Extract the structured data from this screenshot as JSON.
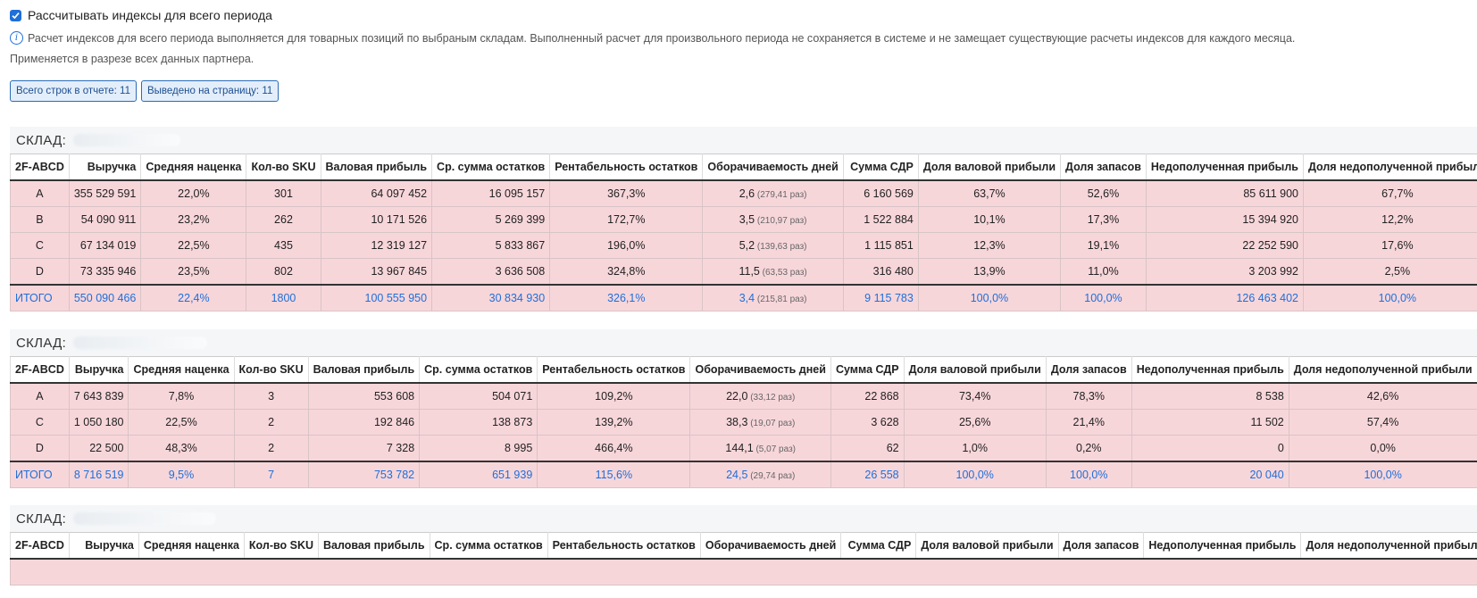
{
  "settings": {
    "checkbox_label": "Рассчитывать индексы для всего периода",
    "checkbox_checked": true,
    "info_text": "Расчет индексов для всего периода выполняется для товарных позиций по выбраным складам. Выполненный расчет для произвольного периода не сохраняется в системе и не замещает существующие расчеты индексов для каждого месяца.",
    "note_text": "Применяется в разрезе всех данных партнера."
  },
  "badges": {
    "total_rows": "Всего строк в отчете: 11",
    "shown_rows": "Выведено на страницу: 11"
  },
  "columns": [
    "2F-ABCD",
    "Выручка",
    "Средняя наценка",
    "Кол-во SKU",
    "Валовая прибыль",
    "Ср. сумма остатков",
    "Рентабельность остатков",
    "Оборачиваемость дней",
    "Сумма СДР",
    "Доля валовой прибыли",
    "Доля запасов",
    "Недополученная прибыль",
    "Доля недополученной прибыли"
  ],
  "warehouses": [
    {
      "label": "СКЛАД:",
      "rows": [
        [
          "A",
          "355 529 591",
          "22,0%",
          "301",
          "64 097 452",
          "16 095 157",
          "367,3%",
          "2,6",
          "(279,41 раз)",
          "6 160 569",
          "63,7%",
          "52,6%",
          "85 611 900",
          "67,7%"
        ],
        [
          "B",
          "54 090 911",
          "23,2%",
          "262",
          "10 171 526",
          "5 269 399",
          "172,7%",
          "3,5",
          "(210,97 раз)",
          "1 522 884",
          "10,1%",
          "17,3%",
          "15 394 920",
          "12,2%"
        ],
        [
          "C",
          "67 134 019",
          "22,5%",
          "435",
          "12 319 127",
          "5 833 867",
          "196,0%",
          "5,2",
          "(139,63 раз)",
          "1 115 851",
          "12,3%",
          "19,1%",
          "22 252 590",
          "17,6%"
        ],
        [
          "D",
          "73 335 946",
          "23,5%",
          "802",
          "13 967 845",
          "3 636 508",
          "324,8%",
          "11,5",
          "(63,53 раз)",
          "316 480",
          "13,9%",
          "11,0%",
          "3 203 992",
          "2,5%"
        ]
      ],
      "total": [
        "ИТОГО",
        "550 090 466",
        "22,4%",
        "1800",
        "100 555 950",
        "30 834 930",
        "326,1%",
        "3,4",
        "(215,81 раз)",
        "9 115 783",
        "100,0%",
        "100,0%",
        "126 463 402",
        "100,0%"
      ]
    },
    {
      "label": "СКЛАД:",
      "rows": [
        [
          "A",
          "7 643 839",
          "7,8%",
          "3",
          "553 608",
          "504 071",
          "109,2%",
          "22,0",
          "(33,12 раз)",
          "22 868",
          "73,4%",
          "78,3%",
          "8 538",
          "42,6%"
        ],
        [
          "C",
          "1 050 180",
          "22,5%",
          "2",
          "192 846",
          "138 873",
          "139,2%",
          "38,3",
          "(19,07 раз)",
          "3 628",
          "25,6%",
          "21,4%",
          "11 502",
          "57,4%"
        ],
        [
          "D",
          "22 500",
          "48,3%",
          "2",
          "7 328",
          "8 995",
          "466,4%",
          "144,1",
          "(5,07 раз)",
          "62",
          "1,0%",
          "0,2%",
          "0",
          "0,0%"
        ]
      ],
      "total": [
        "ИТОГО",
        "8 716 519",
        "9,5%",
        "7",
        "753 782",
        "651 939",
        "115,6%",
        "24,5",
        "(29,74 раз)",
        "26 558",
        "100,0%",
        "100,0%",
        "20 040",
        "100,0%"
      ]
    },
    {
      "label": "СКЛАД:",
      "rows": [],
      "total": null
    }
  ]
}
